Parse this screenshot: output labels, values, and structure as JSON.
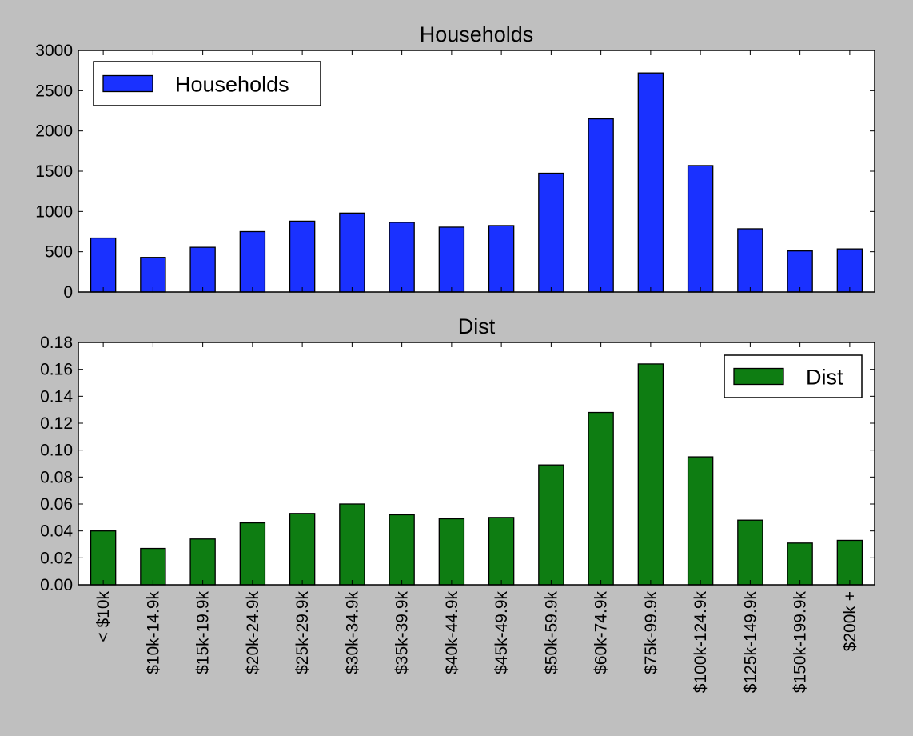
{
  "chart_data": [
    {
      "type": "bar",
      "title": "Households",
      "categories": [
        "< $10k",
        "$10k-14.9k",
        "$15k-19.9k",
        "$20k-24.9k",
        "$25k-29.9k",
        "$30k-34.9k",
        "$35k-39.9k",
        "$40k-44.9k",
        "$45k-49.9k",
        "$50k-59.9k",
        "$60k-74.9k",
        "$75k-99.9k",
        "$100k-124.9k",
        "$125k-149.9k",
        "$150k-199.9k",
        "$200k +"
      ],
      "series": [
        {
          "name": "Households",
          "color": "#1a31ff",
          "values": [
            670,
            430,
            555,
            750,
            880,
            980,
            865,
            805,
            825,
            1475,
            2150,
            2720,
            1570,
            785,
            510,
            535
          ]
        }
      ],
      "ylim": [
        0,
        3000
      ],
      "yticks": [
        "0",
        "500",
        "1000",
        "1500",
        "2000",
        "2500",
        "3000"
      ],
      "legend": "top-left",
      "grid": false,
      "show_xticklabels": false
    },
    {
      "type": "bar",
      "title": "Dist",
      "categories": [
        "< $10k",
        "$10k-14.9k",
        "$15k-19.9k",
        "$20k-24.9k",
        "$25k-29.9k",
        "$30k-34.9k",
        "$35k-39.9k",
        "$40k-44.9k",
        "$45k-49.9k",
        "$50k-59.9k",
        "$60k-74.9k",
        "$75k-99.9k",
        "$100k-124.9k",
        "$125k-149.9k",
        "$150k-199.9k",
        "$200k +"
      ],
      "series": [
        {
          "name": "Dist",
          "color": "#0e7d12",
          "values": [
            0.04,
            0.027,
            0.034,
            0.046,
            0.053,
            0.06,
            0.052,
            0.049,
            0.05,
            0.089,
            0.128,
            0.164,
            0.095,
            0.048,
            0.031,
            0.033
          ]
        }
      ],
      "ylim": [
        0,
        0.18
      ],
      "yticks": [
        "0.00",
        "0.02",
        "0.04",
        "0.06",
        "0.08",
        "0.10",
        "0.12",
        "0.14",
        "0.16",
        "0.18"
      ],
      "legend": "top-right",
      "grid": false,
      "show_xticklabels": true
    }
  ]
}
